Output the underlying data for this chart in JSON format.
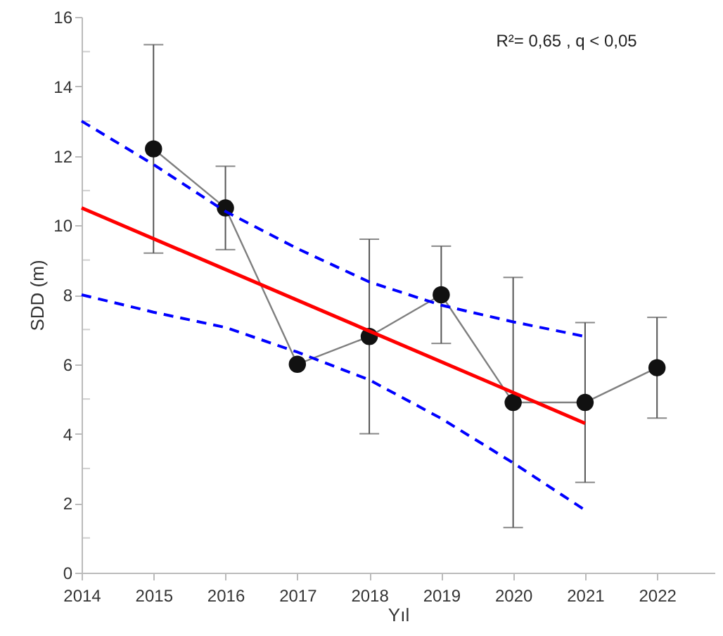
{
  "chart_data": {
    "type": "line",
    "xlabel": "Yıl",
    "ylabel": "SDD (m)",
    "annotations": [
      "R²= 0,65 , q < 0,05"
    ],
    "xlim": [
      2014,
      2022.8
    ],
    "xticks": [
      2014,
      2015,
      2016,
      2017,
      2018,
      2019,
      2020,
      2021,
      2022
    ],
    "ylim": [
      0,
      16
    ],
    "yticks": [
      0,
      {
        "value": 1,
        "label": null
      },
      2,
      {
        "value": 3,
        "label": null
      },
      4,
      {
        "value": 5,
        "label": null
      },
      6,
      {
        "value": 7,
        "label": null
      },
      8,
      {
        "value": 9,
        "label": null
      },
      10,
      {
        "value": 11,
        "label": null
      },
      12,
      {
        "value": 13,
        "label": null
      },
      14,
      {
        "value": 15,
        "label": null
      },
      16
    ],
    "grid": false,
    "series": [
      {
        "color": "#7f7f7f",
        "marker": "circle",
        "line_style": "solid",
        "x": [
          2015,
          2016,
          2017,
          2018,
          2019,
          2020,
          2021,
          2022
        ],
        "values": [
          12.2,
          10.5,
          6.0,
          6.8,
          8.0,
          4.9,
          4.9,
          5.9
        ],
        "errors": [
          3.0,
          1.2,
          null,
          2.8,
          1.4,
          3.6,
          2.3,
          1.45
        ]
      },
      {
        "color": "#ff0000",
        "marker": "none",
        "line_style": "solid",
        "x": [
          2014,
          2021
        ],
        "values": [
          10.5,
          4.3
        ]
      },
      {
        "color": "#0000ff",
        "marker": "none",
        "line_style": "dashed",
        "x": [
          2014,
          2015,
          2016,
          2017,
          2018,
          2019,
          2020,
          2021
        ],
        "values": [
          13.0,
          11.75,
          10.4,
          9.33,
          8.37,
          7.7,
          7.22,
          6.8
        ]
      },
      {
        "color": "#0000ff",
        "marker": "none",
        "line_style": "dashed",
        "x": [
          2014,
          2015,
          2016,
          2017,
          2018,
          2019,
          2020,
          2021
        ],
        "values": [
          8.0,
          7.5,
          7.06,
          6.35,
          5.55,
          4.44,
          3.16,
          1.8
        ]
      }
    ]
  }
}
